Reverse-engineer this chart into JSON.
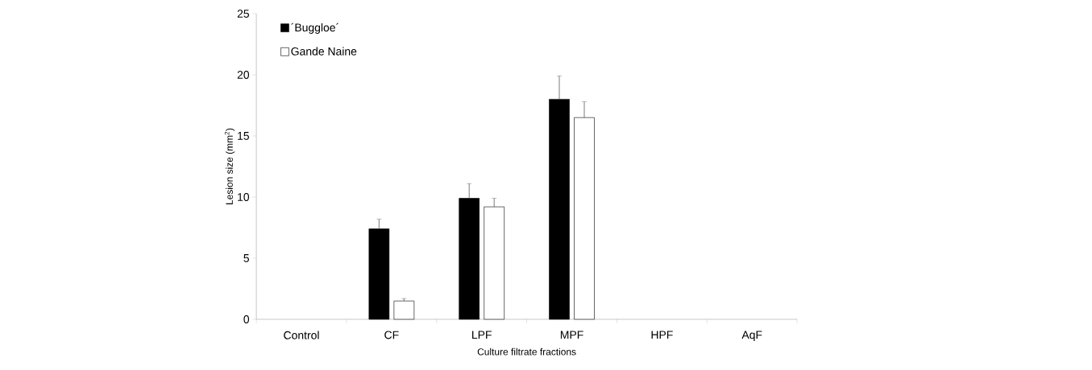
{
  "chart_data": {
    "type": "bar",
    "xlabel": "Culture filtrate fractions",
    "ylabel": "Lesion size (mm$^{2}$)",
    "categories": [
      "Control",
      "CF",
      "LPF",
      "MPF",
      "HPF",
      "AqF"
    ],
    "series": [
      {
        "name": "´Buggloe´",
        "color": "#000000",
        "values": [
          null,
          7.4,
          9.9,
          18.0,
          null,
          null
        ],
        "errors": [
          null,
          0.8,
          1.2,
          1.9,
          null,
          null
        ]
      },
      {
        "name": "Gande Naine",
        "color": "#ffffff",
        "values": [
          null,
          1.5,
          9.2,
          16.5,
          null,
          null
        ],
        "errors": [
          null,
          0.2,
          0.7,
          1.3,
          null,
          null
        ]
      }
    ],
    "ylim": [
      0,
      25
    ],
    "yticks": [
      0,
      5,
      10,
      15,
      20,
      25
    ],
    "grid": false,
    "legend": "top left"
  }
}
